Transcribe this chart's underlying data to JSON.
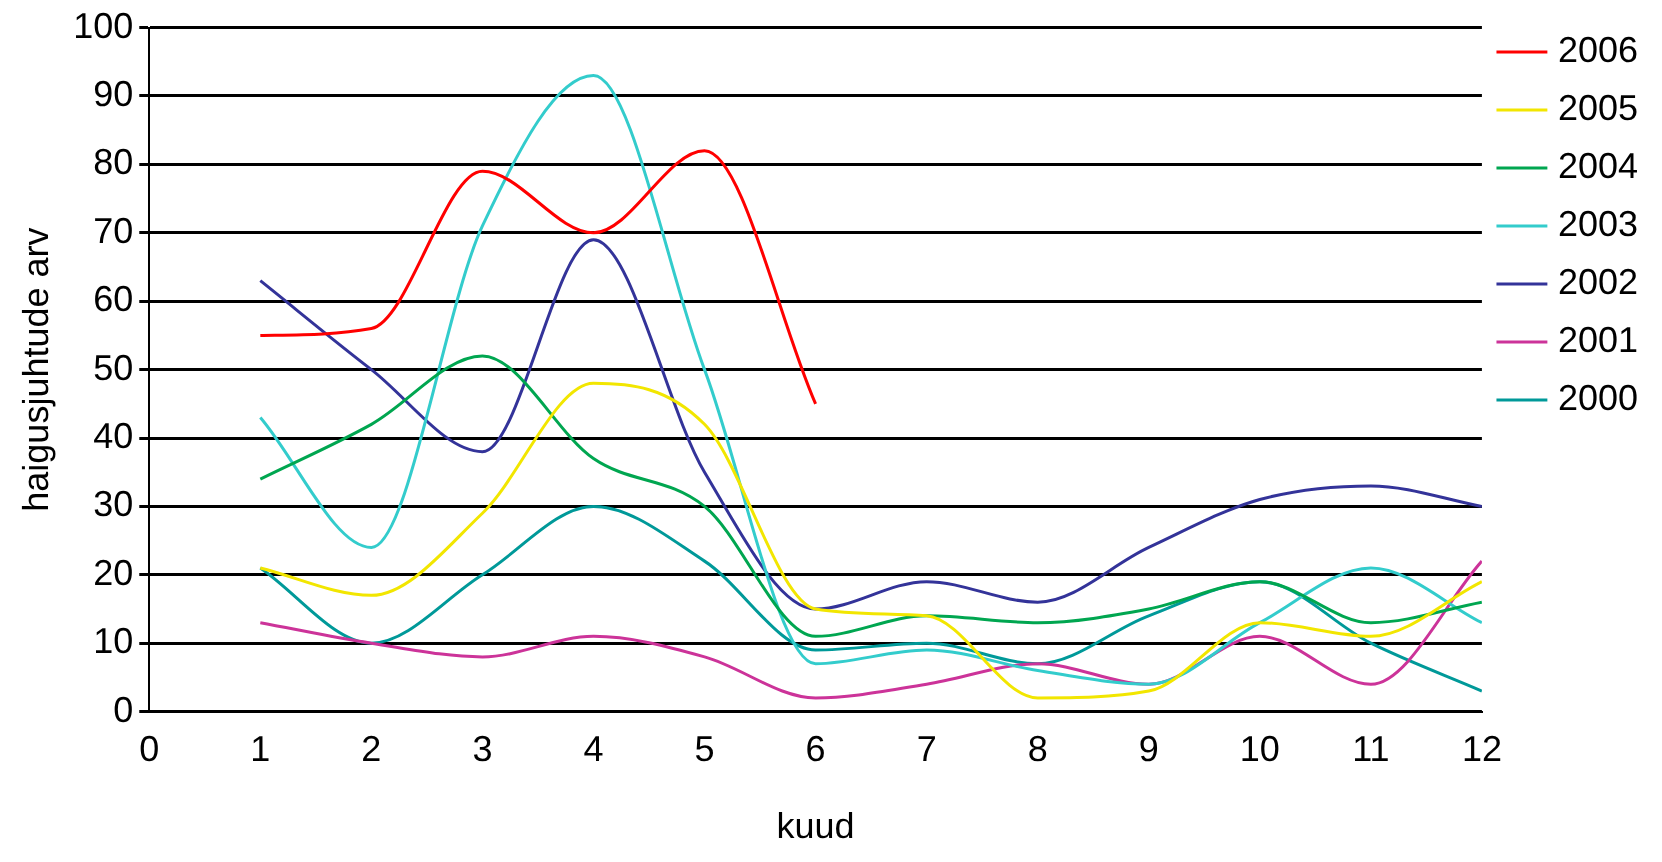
{
  "chart_data": {
    "type": "line",
    "xlabel": "kuud",
    "ylabel": "haigusjuhtude arv",
    "xlim": [
      0,
      12
    ],
    "xticks": [
      0,
      1,
      2,
      3,
      4,
      5,
      6,
      7,
      8,
      9,
      10,
      11,
      12
    ],
    "ylim": [
      0,
      100
    ],
    "yticks": [
      0,
      10,
      20,
      30,
      40,
      50,
      60,
      70,
      80,
      90,
      100
    ],
    "x": [
      1,
      2,
      3,
      4,
      5,
      6,
      7,
      8,
      9,
      10,
      11,
      12
    ],
    "grid": "y",
    "legend": "right",
    "marker": "none",
    "line_style": "solid",
    "series": [
      {
        "name": "2006",
        "color": "#ff0000",
        "values": [
          55,
          56,
          79,
          70,
          82,
          45,
          null,
          null,
          null,
          null,
          null,
          null
        ]
      },
      {
        "name": "2005",
        "color": "#f2e600",
        "values": [
          21,
          17,
          29,
          48,
          42,
          15,
          14,
          2,
          3,
          13,
          11,
          19
        ]
      },
      {
        "name": "2004",
        "color": "#00a650",
        "values": [
          34,
          42,
          52,
          37,
          30,
          11,
          14,
          13,
          15,
          19,
          13,
          16
        ]
      },
      {
        "name": "2003",
        "color": "#33cccc",
        "values": [
          43,
          24,
          71,
          93,
          50,
          7,
          9,
          6,
          4,
          13,
          21,
          13
        ]
      },
      {
        "name": "2002",
        "color": "#333399",
        "values": [
          63,
          50,
          38,
          69,
          35,
          15,
          19,
          16,
          24,
          31,
          33,
          30
        ]
      },
      {
        "name": "2001",
        "color": "#cc3399",
        "values": [
          13,
          10,
          8,
          11,
          8,
          2,
          4,
          7,
          4,
          11,
          4,
          22
        ]
      },
      {
        "name": "2000",
        "color": "#009999",
        "values": [
          21,
          10,
          20,
          30,
          22,
          9,
          10,
          7,
          14,
          19,
          10,
          3
        ]
      }
    ]
  }
}
